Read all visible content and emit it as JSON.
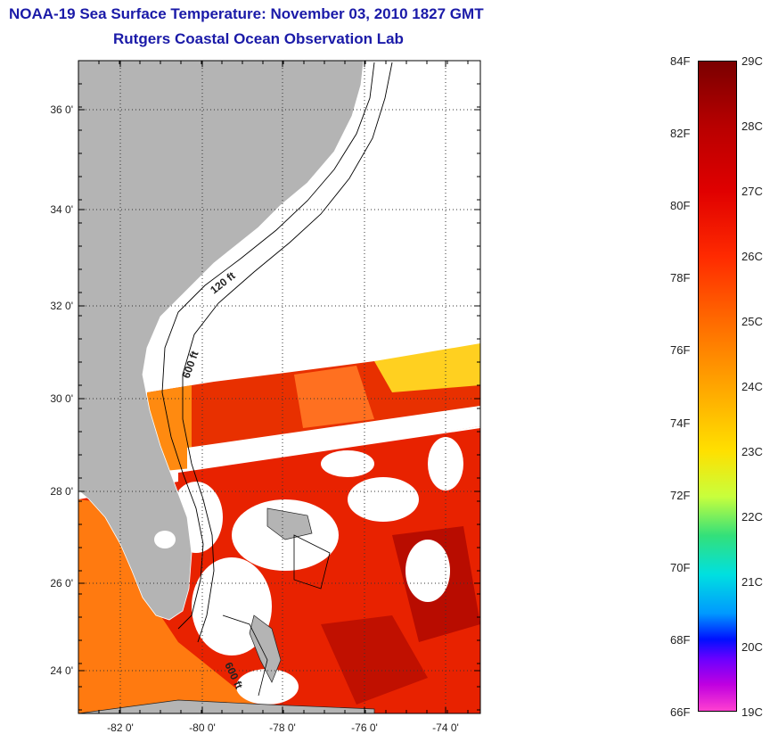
{
  "header": {
    "title_line1": "NOAA-19 Sea Surface Temperature:  November 03, 2010 1827 GMT",
    "title_line2": "Rutgers Coastal Ocean Observation Lab"
  },
  "map": {
    "lat_labels": [
      "36 0'",
      "34 0'",
      "32 0'",
      "30 0'",
      "28 0'",
      "26 0'",
      "24 0'"
    ],
    "lon_labels": [
      "-82 0'",
      "-80 0'",
      "-78 0'",
      "-76 0'",
      "-74 0'"
    ],
    "contour_labels": [
      "120 ft",
      "600 ft",
      "600 ft"
    ],
    "colors": {
      "land": "#b4b4b4",
      "no_data": "#ffffff",
      "warm_sst": "#e82000",
      "mid_sst": "#ff7a00",
      "cool_sst": "#ffd000"
    }
  },
  "colorbar": {
    "fahrenheit_labels": [
      "84F",
      "82F",
      "80F",
      "78F",
      "76F",
      "74F",
      "72F",
      "70F",
      "68F",
      "66F"
    ],
    "celsius_labels": [
      "29C",
      "28C",
      "27C",
      "26C",
      "25C",
      "24C",
      "23C",
      "22C",
      "21C",
      "20C",
      "19C"
    ]
  }
}
